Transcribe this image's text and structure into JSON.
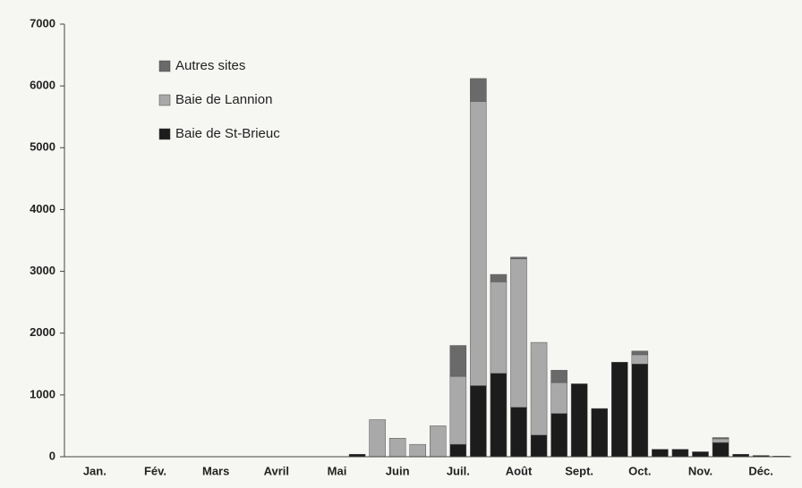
{
  "chart_data": {
    "type": "stacked_bar",
    "x": [
      14,
      15,
      16,
      17,
      18,
      19,
      20,
      21,
      22,
      23,
      24,
      25,
      26,
      27,
      28,
      29,
      30,
      31,
      32,
      33,
      34,
      35
    ],
    "series": [
      {
        "name": "Baie de St-Brieuc",
        "color": "#1c1c1c",
        "values": [
          40,
          0,
          0,
          0,
          0,
          200,
          1150,
          1350,
          800,
          350,
          700,
          1180,
          780,
          1530,
          1500,
          120,
          120,
          80,
          230,
          40,
          20,
          10
        ]
      },
      {
        "name": "Baie de Lannion",
        "color": "#a9a9a9",
        "values": [
          0,
          600,
          300,
          200,
          500,
          1100,
          4600,
          1480,
          2400,
          1500,
          500,
          0,
          0,
          0,
          150,
          0,
          0,
          0,
          60,
          0,
          0,
          0
        ]
      },
      {
        "name": "Autres sites",
        "color": "#6a6a6a",
        "values": [
          0,
          0,
          0,
          0,
          0,
          500,
          370,
          120,
          30,
          0,
          200,
          0,
          0,
          0,
          60,
          0,
          0,
          0,
          20,
          0,
          0,
          0
        ]
      }
    ],
    "xlim": [
      0,
      36
    ],
    "xticks": [
      {
        "value": 1.5,
        "label": "Jan."
      },
      {
        "value": 4.5,
        "label": "Fév."
      },
      {
        "value": 7.5,
        "label": "Mars"
      },
      {
        "value": 10.5,
        "label": "Avril"
      },
      {
        "value": 13.5,
        "label": "Mai"
      },
      {
        "value": 16.5,
        "label": "Juin"
      },
      {
        "value": 19.5,
        "label": "Juil."
      },
      {
        "value": 22.5,
        "label": "Août"
      },
      {
        "value": 25.5,
        "label": "Sept."
      },
      {
        "value": 28.5,
        "label": "Oct."
      },
      {
        "value": 31.5,
        "label": "Nov."
      },
      {
        "value": 34.5,
        "label": "Déc."
      }
    ],
    "ylim": [
      0,
      7000
    ],
    "yticks": [
      0,
      1000,
      2000,
      3000,
      4000,
      5000,
      6000,
      7000
    ],
    "legend": "upper left"
  }
}
